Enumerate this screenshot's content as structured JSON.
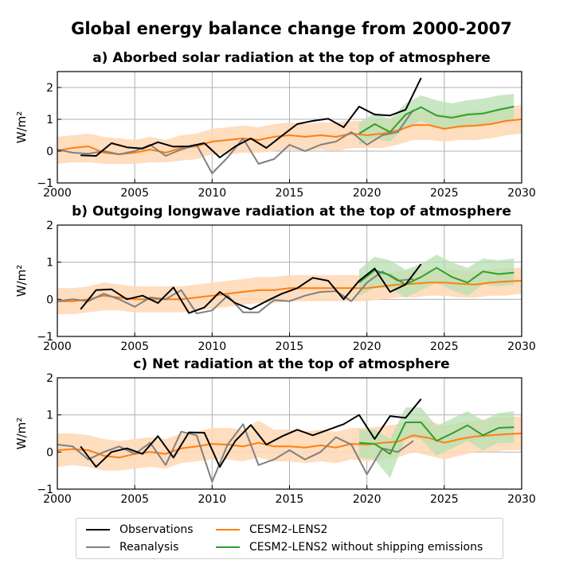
{
  "title": "Global energy balance change from 2000-2007",
  "colors": {
    "observations": "#000000",
    "reanalysis": "#808080",
    "cesm2": "#ff7f0e",
    "cesm2_band": "#ffd9b8",
    "noship": "#2ca02c",
    "noship_band": "#b7dfb0"
  },
  "legend": {
    "placement": "bottom",
    "entries": [
      {
        "key": "observations",
        "label": "Observations"
      },
      {
        "key": "reanalysis",
        "label": "Reanalysis"
      },
      {
        "key": "cesm2",
        "label": "CESM2-LENS2"
      },
      {
        "key": "noship",
        "label": "CESM2-LENS2 without shipping emissions"
      }
    ]
  },
  "chart_data": [
    {
      "type": "line",
      "title": "a)  Aborbed solar radiation at the top of atmosphere",
      "ylabel": "W/m²",
      "xlim": [
        2000,
        2030
      ],
      "ylim": [
        -1,
        2.5
      ],
      "xticks": [
        2000,
        2005,
        2010,
        2015,
        2020,
        2025,
        2030
      ],
      "yticks": [
        -1,
        0,
        1,
        2
      ],
      "grid": true,
      "series": [
        {
          "name": "Observations",
          "key": "observations",
          "x": [
            2001.5,
            2002.5,
            2003.5,
            2004.5,
            2005.5,
            2006.5,
            2007.5,
            2008.5,
            2009.5,
            2010.5,
            2011.5,
            2012.5,
            2013.5,
            2014.5,
            2015.5,
            2016.5,
            2017.5,
            2018.5,
            2019.5,
            2020.5,
            2021.5,
            2022.5,
            2023.5
          ],
          "y": [
            -0.13,
            -0.15,
            0.25,
            0.12,
            0.08,
            0.28,
            0.14,
            0.15,
            0.25,
            -0.2,
            0.15,
            0.4,
            0.1,
            0.48,
            0.85,
            0.95,
            1.02,
            0.75,
            1.4,
            1.15,
            1.12,
            1.3,
            2.3
          ]
        },
        {
          "name": "Reanalysis",
          "key": "reanalysis",
          "x": [
            2000,
            2001,
            2002,
            2003,
            2004,
            2005,
            2006,
            2007,
            2008,
            2009,
            2010,
            2011,
            2012,
            2013,
            2014,
            2015,
            2016,
            2017,
            2018,
            2019,
            2020,
            2021,
            2022,
            2023
          ],
          "y": [
            0.05,
            -0.05,
            -0.08,
            0.0,
            -0.1,
            0.0,
            0.2,
            -0.15,
            0.05,
            0.2,
            -0.7,
            -0.2,
            0.4,
            -0.4,
            -0.25,
            0.2,
            0.0,
            0.2,
            0.3,
            0.6,
            0.2,
            0.5,
            0.6,
            1.3
          ]
        },
        {
          "name": "CESM2-LENS2",
          "key": "cesm2",
          "x": [
            2000,
            2001,
            2002,
            2003,
            2004,
            2005,
            2006,
            2007,
            2008,
            2009,
            2010,
            2011,
            2012,
            2013,
            2014,
            2015,
            2016,
            2017,
            2018,
            2019,
            2020,
            2021,
            2022,
            2023,
            2024,
            2025,
            2026,
            2027,
            2028,
            2029,
            2030
          ],
          "y": [
            0.02,
            0.1,
            0.15,
            -0.05,
            -0.1,
            -0.05,
            0.05,
            -0.05,
            0.1,
            0.15,
            0.3,
            0.35,
            0.4,
            0.35,
            0.45,
            0.5,
            0.45,
            0.5,
            0.45,
            0.55,
            0.5,
            0.55,
            0.65,
            0.82,
            0.82,
            0.7,
            0.78,
            0.8,
            0.85,
            0.95,
            1.0
          ],
          "band_lower": [
            -0.4,
            -0.35,
            -0.35,
            -0.4,
            -0.4,
            -0.4,
            -0.35,
            -0.35,
            -0.3,
            -0.25,
            -0.1,
            -0.1,
            -0.05,
            -0.05,
            0.0,
            0.05,
            0.0,
            0.05,
            0.0,
            0.1,
            0.1,
            0.1,
            0.2,
            0.35,
            0.35,
            0.3,
            0.35,
            0.35,
            0.4,
            0.5,
            0.55
          ],
          "band_upper": [
            0.45,
            0.5,
            0.55,
            0.45,
            0.4,
            0.35,
            0.45,
            0.35,
            0.5,
            0.55,
            0.7,
            0.75,
            0.8,
            0.75,
            0.85,
            0.9,
            0.85,
            0.9,
            0.9,
            0.95,
            0.95,
            1.0,
            1.1,
            1.25,
            1.25,
            1.15,
            1.2,
            1.25,
            1.3,
            1.4,
            1.45
          ]
        },
        {
          "name": "CESM2-LENS2 without shipping emissions",
          "key": "noship",
          "x": [
            2019.5,
            2020.5,
            2021.5,
            2022.5,
            2023.5,
            2024.5,
            2025.5,
            2026.5,
            2027.5,
            2028.5,
            2029.5
          ],
          "y": [
            0.55,
            0.85,
            0.6,
            1.15,
            1.38,
            1.12,
            1.05,
            1.15,
            1.18,
            1.3,
            1.4
          ],
          "band_lower": [
            0.2,
            0.4,
            0.3,
            0.75,
            0.95,
            0.75,
            0.7,
            0.75,
            0.8,
            0.9,
            1.0
          ],
          "band_upper": [
            0.9,
            1.2,
            1.0,
            1.5,
            1.75,
            1.6,
            1.5,
            1.6,
            1.65,
            1.75,
            1.8
          ]
        }
      ]
    },
    {
      "type": "line",
      "title": "b)  Outgoing longwave radiation at the top of atmosphere",
      "ylabel": "W/m²",
      "xlim": [
        2000,
        2030
      ],
      "ylim": [
        -1,
        2
      ],
      "xticks": [
        2000,
        2005,
        2010,
        2015,
        2020,
        2025,
        2030
      ],
      "yticks": [
        -1,
        0,
        1,
        2
      ],
      "grid": true,
      "series": [
        {
          "name": "Observations",
          "key": "observations",
          "x": [
            2001.5,
            2002.5,
            2003.5,
            2004.5,
            2005.5,
            2006.5,
            2007.5,
            2008.5,
            2009.5,
            2010.5,
            2011.5,
            2012.5,
            2013.5,
            2014.5,
            2015.5,
            2016.5,
            2017.5,
            2018.5,
            2019.5,
            2020.5,
            2021.5,
            2022.5,
            2023.5
          ],
          "y": [
            -0.27,
            0.25,
            0.27,
            0.0,
            0.1,
            -0.1,
            0.32,
            -0.37,
            -0.22,
            0.2,
            -0.1,
            -0.27,
            -0.05,
            0.15,
            0.3,
            0.58,
            0.5,
            0.0,
            0.5,
            0.83,
            0.2,
            0.4,
            0.95
          ]
        },
        {
          "name": "Reanalysis",
          "key": "reanalysis",
          "x": [
            2000,
            2001,
            2002,
            2003,
            2004,
            2005,
            2006,
            2007,
            2008,
            2009,
            2010,
            2011,
            2012,
            2013,
            2014,
            2015,
            2016,
            2017,
            2018,
            2019,
            2020,
            2021,
            2022,
            2023
          ],
          "y": [
            -0.05,
            0.0,
            -0.05,
            0.15,
            0.0,
            -0.2,
            0.05,
            0.0,
            0.25,
            -0.38,
            -0.3,
            0.1,
            -0.35,
            -0.35,
            -0.02,
            -0.05,
            0.1,
            0.2,
            0.22,
            -0.05,
            0.45,
            0.75,
            0.5,
            0.55
          ]
        },
        {
          "name": "CESM2-LENS2",
          "key": "cesm2",
          "x": [
            2000,
            2001,
            2002,
            2003,
            2004,
            2005,
            2006,
            2007,
            2008,
            2009,
            2010,
            2011,
            2012,
            2013,
            2014,
            2015,
            2016,
            2017,
            2018,
            2019,
            2020,
            2021,
            2022,
            2023,
            2024,
            2025,
            2026,
            2027,
            2028,
            2029,
            2030
          ],
          "y": [
            -0.05,
            -0.05,
            0.0,
            0.1,
            0.05,
            0.0,
            0.0,
            0.0,
            0.0,
            0.05,
            0.1,
            0.15,
            0.2,
            0.25,
            0.25,
            0.3,
            0.3,
            0.3,
            0.3,
            0.3,
            0.3,
            0.35,
            0.4,
            0.42,
            0.45,
            0.45,
            0.42,
            0.4,
            0.45,
            0.48,
            0.5
          ],
          "band_lower": [
            -0.4,
            -0.4,
            -0.35,
            -0.3,
            -0.3,
            -0.35,
            -0.35,
            -0.35,
            -0.35,
            -0.3,
            -0.25,
            -0.2,
            -0.15,
            -0.1,
            -0.1,
            -0.05,
            -0.05,
            -0.05,
            -0.05,
            -0.05,
            -0.05,
            0.0,
            0.05,
            0.05,
            0.1,
            0.1,
            0.05,
            0.05,
            0.1,
            0.1,
            0.15
          ],
          "band_upper": [
            0.3,
            0.3,
            0.35,
            0.45,
            0.4,
            0.35,
            0.35,
            0.35,
            0.35,
            0.4,
            0.45,
            0.5,
            0.55,
            0.6,
            0.6,
            0.65,
            0.65,
            0.65,
            0.65,
            0.65,
            0.65,
            0.7,
            0.75,
            0.78,
            0.8,
            0.8,
            0.78,
            0.75,
            0.8,
            0.85,
            0.85
          ]
        },
        {
          "name": "CESM2-LENS2 without shipping emissions",
          "key": "noship",
          "x": [
            2019.5,
            2020.5,
            2021.5,
            2022.5,
            2023.5,
            2024.5,
            2025.5,
            2026.5,
            2027.5,
            2028.5,
            2029.5
          ],
          "y": [
            0.45,
            0.78,
            0.65,
            0.4,
            0.6,
            0.85,
            0.6,
            0.45,
            0.75,
            0.68,
            0.72
          ],
          "band_lower": [
            0.1,
            0.3,
            0.3,
            0.05,
            0.25,
            0.45,
            0.25,
            0.1,
            0.4,
            0.35,
            0.4
          ],
          "band_upper": [
            0.8,
            1.15,
            1.05,
            0.8,
            0.95,
            1.2,
            1.0,
            0.85,
            1.1,
            1.05,
            1.1
          ]
        }
      ]
    },
    {
      "type": "line",
      "title": "c)  Net radiation at the top of atmosphere",
      "ylabel": "W/m²",
      "xlim": [
        2000,
        2030
      ],
      "ylim": [
        -1,
        2
      ],
      "xticks": [
        2000,
        2005,
        2010,
        2015,
        2020,
        2025,
        2030
      ],
      "yticks": [
        -1,
        0,
        1,
        2
      ],
      "grid": true,
      "series": [
        {
          "name": "Observations",
          "key": "observations",
          "x": [
            2001.5,
            2002.5,
            2003.5,
            2004.5,
            2005.5,
            2006.5,
            2007.5,
            2008.5,
            2009.5,
            2010.5,
            2011.5,
            2012.5,
            2013.5,
            2014.5,
            2015.5,
            2016.5,
            2017.5,
            2018.5,
            2019.5,
            2020.5,
            2021.5,
            2022.5,
            2023.5
          ],
          "y": [
            0.15,
            -0.4,
            0.0,
            0.1,
            -0.05,
            0.43,
            -0.15,
            0.53,
            0.52,
            -0.4,
            0.3,
            0.73,
            0.2,
            0.42,
            0.6,
            0.45,
            0.6,
            0.75,
            1.0,
            0.35,
            0.97,
            0.92,
            1.43
          ]
        },
        {
          "name": "Reanalysis",
          "key": "reanalysis",
          "x": [
            2000,
            2001,
            2002,
            2003,
            2004,
            2005,
            2006,
            2007,
            2008,
            2009,
            2010,
            2011,
            2012,
            2013,
            2014,
            2015,
            2016,
            2017,
            2018,
            2019,
            2020,
            2021,
            2022,
            2023
          ],
          "y": [
            0.2,
            0.15,
            -0.2,
            0.0,
            0.15,
            -0.05,
            0.25,
            -0.35,
            0.55,
            0.45,
            -0.8,
            0.2,
            0.75,
            -0.35,
            -0.2,
            0.05,
            -0.2,
            0.0,
            0.4,
            0.2,
            -0.6,
            0.1,
            0.0,
            0.3
          ]
        },
        {
          "name": "CESM2-LENS2",
          "key": "cesm2",
          "x": [
            2000,
            2001,
            2002,
            2003,
            2004,
            2005,
            2006,
            2007,
            2008,
            2009,
            2010,
            2011,
            2012,
            2013,
            2014,
            2015,
            2016,
            2017,
            2018,
            2019,
            2020,
            2021,
            2022,
            2023,
            2024,
            2025,
            2026,
            2027,
            2028,
            2029,
            2030
          ],
          "y": [
            0.05,
            0.08,
            0.05,
            -0.1,
            -0.15,
            -0.05,
            0.0,
            -0.05,
            0.1,
            0.15,
            0.22,
            0.2,
            0.15,
            0.25,
            0.15,
            0.15,
            0.12,
            0.18,
            0.12,
            0.22,
            0.2,
            0.25,
            0.28,
            0.45,
            0.38,
            0.25,
            0.35,
            0.42,
            0.45,
            0.48,
            0.5
          ],
          "band_lower": [
            -0.4,
            -0.35,
            -0.4,
            -0.5,
            -0.5,
            -0.45,
            -0.4,
            -0.45,
            -0.3,
            -0.25,
            -0.2,
            -0.2,
            -0.25,
            -0.15,
            -0.25,
            -0.25,
            -0.3,
            -0.25,
            -0.3,
            -0.2,
            -0.25,
            -0.2,
            -0.15,
            0.0,
            -0.1,
            -0.2,
            -0.1,
            0.0,
            0.0,
            0.05,
            0.05
          ],
          "band_upper": [
            0.5,
            0.5,
            0.45,
            0.35,
            0.3,
            0.35,
            0.4,
            0.35,
            0.5,
            0.55,
            0.65,
            0.65,
            0.6,
            0.85,
            0.6,
            0.6,
            0.55,
            0.6,
            0.55,
            0.65,
            0.65,
            0.7,
            0.75,
            0.9,
            0.85,
            0.7,
            0.8,
            0.85,
            0.9,
            0.95,
            0.95
          ]
        },
        {
          "name": "CESM2-LENS2 without shipping emissions",
          "key": "noship",
          "x": [
            2019.5,
            2020.5,
            2021.5,
            2022.5,
            2023.5,
            2024.5,
            2025.5,
            2026.5,
            2027.5,
            2028.5,
            2029.5
          ],
          "y": [
            0.25,
            0.22,
            -0.05,
            0.8,
            0.8,
            0.3,
            0.5,
            0.72,
            0.45,
            0.65,
            0.67
          ],
          "band_lower": [
            -0.15,
            -0.2,
            -0.7,
            0.4,
            0.35,
            -0.1,
            0.1,
            0.3,
            0.05,
            0.25,
            0.25
          ],
          "band_upper": [
            0.6,
            0.6,
            0.35,
            1.2,
            1.2,
            0.7,
            0.9,
            1.1,
            0.85,
            1.05,
            1.1
          ]
        }
      ]
    }
  ]
}
